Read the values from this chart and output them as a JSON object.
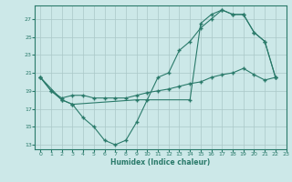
{
  "title": "",
  "xlabel": "Humidex (Indice chaleur)",
  "ylabel": "",
  "bg_color": "#cce8e8",
  "line_color": "#2a7a6a",
  "grid_color": "#aac8c8",
  "xlim": [
    -0.5,
    23
  ],
  "ylim": [
    12.5,
    28.5
  ],
  "xticks": [
    0,
    1,
    2,
    3,
    4,
    5,
    6,
    7,
    8,
    9,
    10,
    11,
    12,
    13,
    14,
    15,
    16,
    17,
    18,
    19,
    20,
    21,
    22,
    23
  ],
  "yticks": [
    13,
    15,
    17,
    19,
    21,
    23,
    25,
    27
  ],
  "series1_x": [
    0,
    1,
    2,
    3,
    4,
    5,
    6,
    7,
    8,
    9,
    10,
    11,
    12,
    13,
    14,
    15,
    16,
    17,
    18,
    19,
    20,
    21,
    22
  ],
  "series1_y": [
    20.5,
    19.0,
    18.0,
    17.5,
    16.0,
    15.0,
    13.5,
    13.0,
    13.5,
    15.5,
    18.0,
    20.5,
    21.0,
    23.5,
    24.5,
    26.0,
    27.0,
    28.0,
    27.5,
    27.5,
    25.5,
    24.5,
    20.5
  ],
  "series2_x": [
    0,
    1,
    2,
    3,
    4,
    5,
    6,
    7,
    8,
    9,
    10,
    11,
    12,
    13,
    14,
    15,
    16,
    17,
    18,
    19,
    20,
    21,
    22
  ],
  "series2_y": [
    20.5,
    19.0,
    18.2,
    18.5,
    18.5,
    18.2,
    18.2,
    18.2,
    18.2,
    18.5,
    18.8,
    19.0,
    19.2,
    19.5,
    19.8,
    20.0,
    20.5,
    20.8,
    21.0,
    21.5,
    20.8,
    20.2,
    20.5
  ],
  "series3_x": [
    0,
    2,
    3,
    9,
    14,
    15,
    16,
    17,
    18,
    19,
    20,
    21,
    22
  ],
  "series3_y": [
    20.5,
    18.0,
    17.5,
    18.0,
    18.0,
    26.5,
    27.5,
    28.0,
    27.5,
    27.5,
    25.5,
    24.5,
    20.5
  ]
}
